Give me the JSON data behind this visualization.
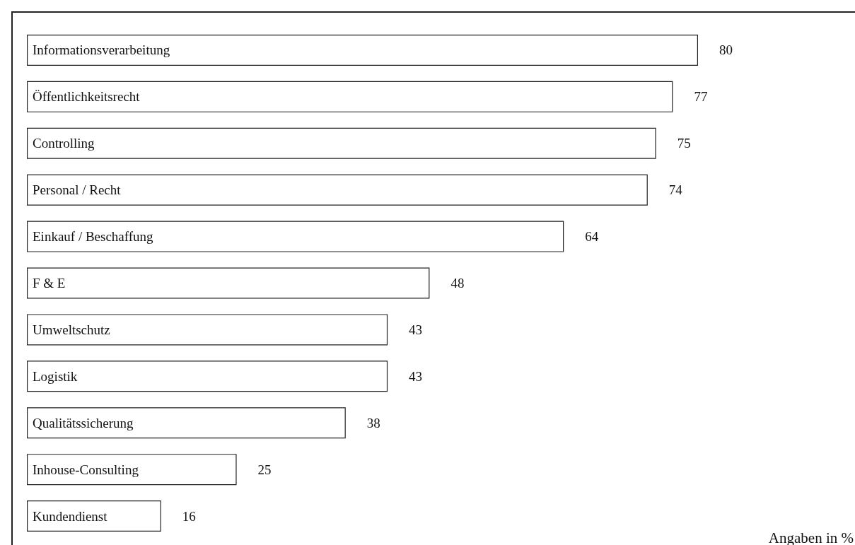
{
  "chart_data": {
    "type": "bar",
    "orientation": "horizontal",
    "categories": [
      "Informationsverarbeitung",
      "Öffentlichkeitsrecht",
      "Controlling",
      "Personal / Recht",
      "Einkauf / Beschaffung",
      "F & E",
      "Umweltschutz",
      "Logistik",
      "Qualitätssicherung",
      "Inhouse-Consulting",
      "Kundendienst"
    ],
    "values": [
      80,
      77,
      75,
      74,
      64,
      48,
      43,
      43,
      38,
      25,
      16
    ],
    "color": "#ffffff",
    "data_labels": true,
    "annotations": [
      "Angaben in %"
    ]
  }
}
